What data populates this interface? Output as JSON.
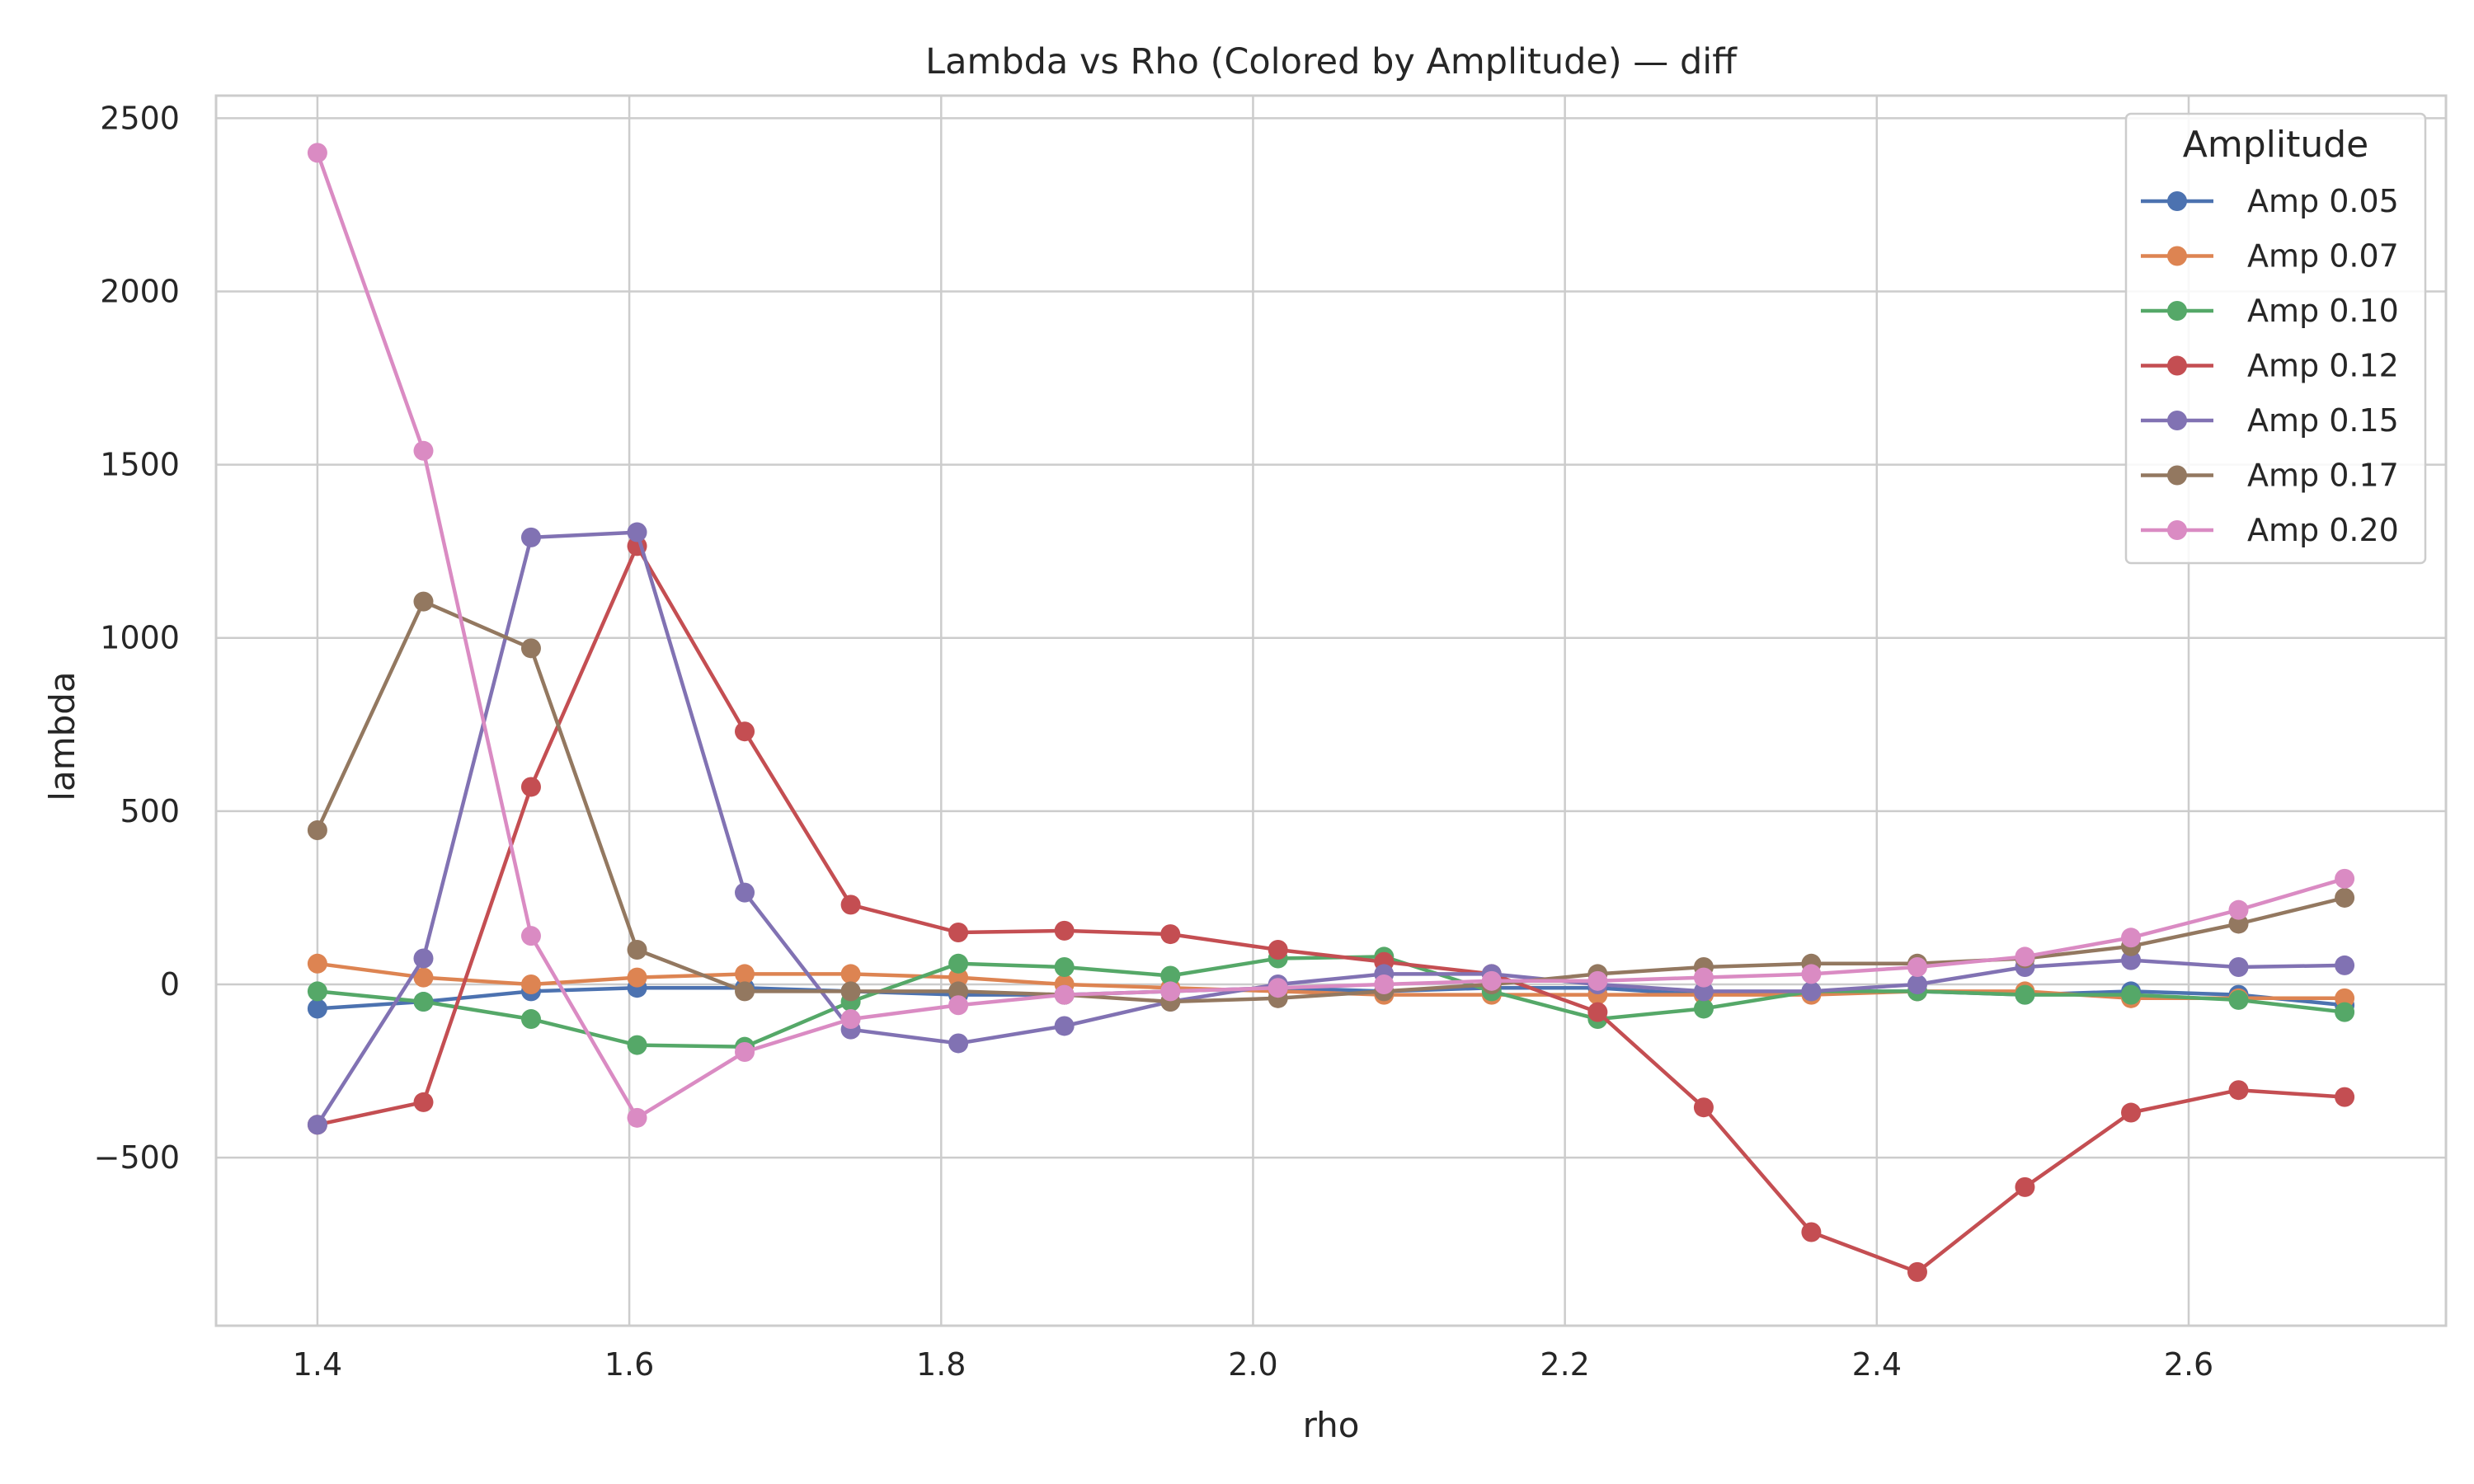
{
  "chart_data": {
    "type": "line",
    "title": "Lambda vs Rho (Colored by Amplitude) — diff",
    "xlabel": "rho",
    "ylabel": "lambda",
    "xlim": [
      1.335,
      2.765
    ],
    "ylim": [
      -985,
      2565
    ],
    "xticks": [
      1.4,
      1.6,
      1.8,
      2.0,
      2.2,
      2.4,
      2.6
    ],
    "xtick_labels": [
      "1.4",
      "1.6",
      "1.8",
      "2.0",
      "2.2",
      "2.4",
      "2.6"
    ],
    "yticks": [
      -500,
      0,
      500,
      1000,
      1500,
      2000,
      2500
    ],
    "ytick_labels": [
      "−500",
      "0",
      "500",
      "1000",
      "1500",
      "2000",
      "2500"
    ],
    "grid": true,
    "legend": {
      "title": "Amplitude",
      "position": "top-right"
    },
    "x": [
      1.4,
      1.468,
      1.537,
      1.605,
      1.674,
      1.742,
      1.811,
      1.879,
      1.947,
      2.016,
      2.084,
      2.153,
      2.221,
      2.289,
      2.358,
      2.426,
      2.495,
      2.563,
      2.632,
      2.7
    ],
    "series": [
      {
        "name": "Amp 0.05",
        "color": "#4c72b0",
        "values": [
          -70,
          -50,
          -20,
          -10,
          -10,
          -20,
          -30,
          -30,
          -20,
          -10,
          -20,
          -10,
          -10,
          -30,
          -20,
          -20,
          -30,
          -20,
          -30,
          -60
        ]
      },
      {
        "name": "Amp 0.07",
        "color": "#dd8452",
        "values": [
          60,
          20,
          0,
          20,
          30,
          30,
          20,
          0,
          -10,
          -20,
          -30,
          -30,
          -30,
          -30,
          -30,
          -20,
          -20,
          -40,
          -40,
          -40
        ]
      },
      {
        "name": "Amp 0.10",
        "color": "#55a868",
        "values": [
          -20,
          -50,
          -100,
          -175,
          -180,
          -50,
          60,
          50,
          25,
          75,
          80,
          -20,
          -100,
          -70,
          -20,
          -20,
          -30,
          -30,
          -45,
          -80
        ]
      },
      {
        "name": "Amp 0.12",
        "color": "#c44e52",
        "values": [
          -405,
          -340,
          570,
          1265,
          730,
          230,
          150,
          155,
          145,
          100,
          65,
          30,
          -80,
          -355,
          -715,
          -830,
          -585,
          -370,
          -305,
          -325
        ]
      },
      {
        "name": "Amp 0.15",
        "color": "#8172b3",
        "values": [
          -405,
          75,
          1290,
          1305,
          265,
          -130,
          -170,
          -120,
          -50,
          0,
          30,
          30,
          0,
          -20,
          -20,
          0,
          50,
          70,
          50,
          55
        ]
      },
      {
        "name": "Amp 0.17",
        "color": "#937860",
        "values": [
          445,
          1105,
          970,
          100,
          -20,
          -20,
          -20,
          -30,
          -50,
          -40,
          -20,
          0,
          30,
          50,
          60,
          60,
          75,
          110,
          175,
          250
        ]
      },
      {
        "name": "Amp 0.20",
        "color": "#da8bc3",
        "values": [
          2400,
          1540,
          140,
          -385,
          -195,
          -100,
          -60,
          -30,
          -20,
          -10,
          0,
          10,
          10,
          20,
          30,
          50,
          80,
          135,
          215,
          305
        ]
      }
    ]
  }
}
